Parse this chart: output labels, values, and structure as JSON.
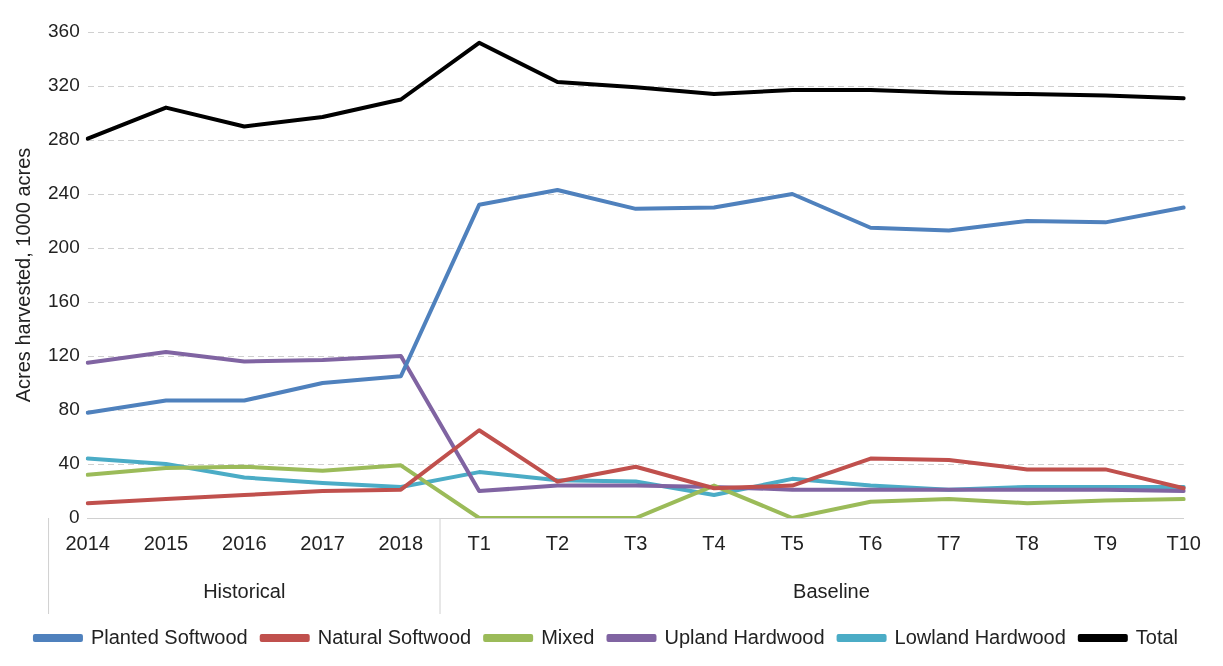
{
  "chart_data": {
    "type": "line",
    "ylabel": "Acres harvested, 1000 acres",
    "categories": [
      "2014",
      "2015",
      "2016",
      "2017",
      "2018",
      "T1",
      "T2",
      "T3",
      "T4",
      "T5",
      "T6",
      "T7",
      "T8",
      "T9",
      "T10"
    ],
    "series": [
      {
        "name": "Planted Softwood",
        "color": "#4f81bd",
        "values": [
          78,
          87,
          87,
          100,
          105,
          232,
          243,
          229,
          230,
          240,
          215,
          213,
          220,
          219,
          230
        ]
      },
      {
        "name": "Natural Softwood",
        "color": "#c0504d",
        "values": [
          11,
          14,
          17,
          20,
          21,
          65,
          27,
          38,
          22,
          24,
          44,
          43,
          36,
          36,
          22
        ]
      },
      {
        "name": "Mixed",
        "color": "#9bbb59",
        "values": [
          32,
          37,
          38,
          35,
          39,
          0,
          0,
          0,
          24,
          0,
          12,
          14,
          11,
          13,
          14
        ]
      },
      {
        "name": "Upland Hardwood",
        "color": "#8064a2",
        "values": [
          115,
          123,
          116,
          117,
          120,
          20,
          24,
          24,
          23,
          21,
          21,
          21,
          21,
          21,
          20
        ]
      },
      {
        "name": "Lowland Hardwood",
        "color": "#4bacc6",
        "values": [
          44,
          40,
          30,
          26,
          23,
          34,
          28,
          27,
          17,
          29,
          24,
          21,
          23,
          23,
          23
        ]
      },
      {
        "name": "Total",
        "color": "#000000",
        "values": [
          281,
          304,
          290,
          297,
          310,
          352,
          323,
          319,
          314,
          317,
          317,
          315,
          314,
          313,
          311
        ]
      }
    ],
    "annotations": [
      "Historical",
      "Baseline"
    ],
    "ylim": [
      0,
      360
    ],
    "yticks": [
      0,
      40,
      80,
      120,
      160,
      200,
      240,
      280,
      320,
      360
    ],
    "grid": "y",
    "legend": "bottom",
    "marker": "none",
    "line_style": "solid"
  }
}
